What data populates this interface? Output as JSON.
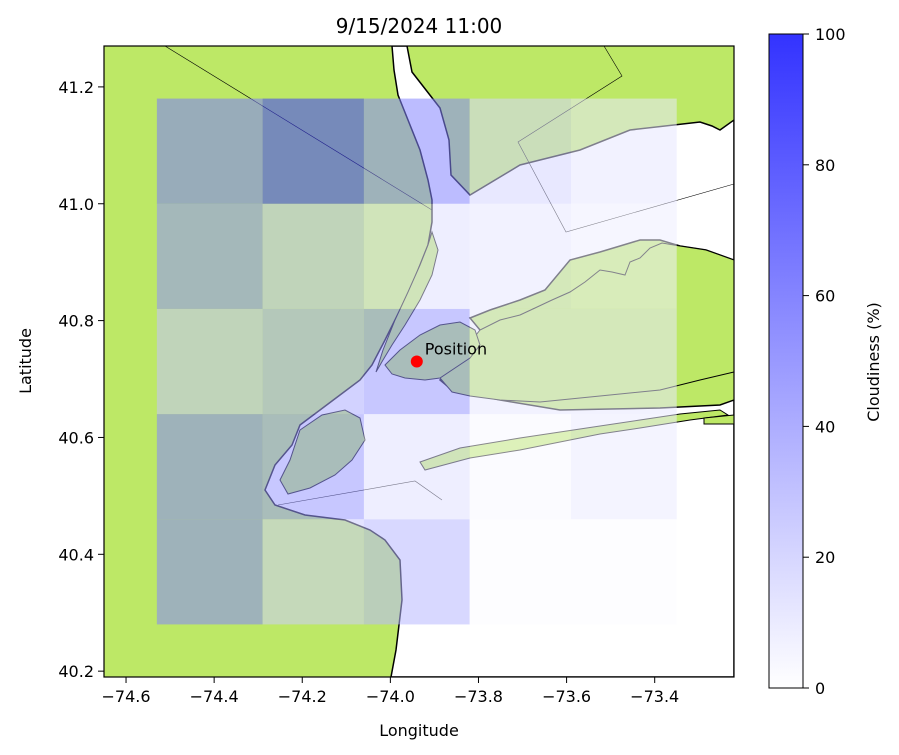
{
  "title": "9/15/2024 11:00",
  "x_axis": {
    "label": "Longitude",
    "range": [
      -74.65,
      -73.22
    ],
    "ticks": [
      -74.6,
      -74.4,
      -74.2,
      -74.0,
      -73.8,
      -73.6,
      -73.4
    ],
    "tick_labels": [
      "−74.6",
      "−74.4",
      "−74.2",
      "−74.0",
      "−73.8",
      "−73.6",
      "−73.4"
    ]
  },
  "y_axis": {
    "label": "Latitude",
    "range": [
      40.19,
      41.27
    ],
    "ticks": [
      40.2,
      40.4,
      40.6,
      40.8,
      41.0,
      41.2
    ],
    "tick_labels": [
      "40.2",
      "40.4",
      "40.6",
      "40.8",
      "41.0",
      "41.2"
    ]
  },
  "colorbar": {
    "label": "Cloudiness (%)",
    "range": [
      0,
      100
    ],
    "ticks": [
      0,
      20,
      40,
      60,
      80,
      100
    ],
    "tick_labels": [
      "0",
      "20",
      "40",
      "60",
      "80",
      "100"
    ],
    "color_min": "#ffffff",
    "color_max": "#3333ff"
  },
  "colors": {
    "land": "#bde866",
    "water": "#ffffff",
    "coast": "#000000",
    "marker": "#ff0000"
  },
  "chart_data": {
    "type": "heatmap",
    "title": "9/15/2024 11:00",
    "xlabel": "Longitude",
    "ylabel": "Latitude",
    "xlim": [
      -74.65,
      -73.22
    ],
    "ylim": [
      40.19,
      41.27
    ],
    "grid": false,
    "value_label": "Cloudiness (%)",
    "lon_edges": [
      -74.53,
      -74.29,
      -74.06,
      -73.82,
      -73.59,
      -73.35
    ],
    "lat_edges": [
      40.28,
      40.46,
      40.64,
      40.82,
      41.0,
      41.18
    ],
    "cells": [
      [
        60,
        25,
        35,
        2,
        2
      ],
      [
        60,
        50,
        15,
        4,
        10
      ],
      [
        30,
        40,
        50,
        12,
        12
      ],
      [
        55,
        30,
        15,
        12,
        8
      ],
      [
        65,
        95,
        60,
        20,
        12
      ]
    ],
    "marker": {
      "lon": -73.94,
      "lat": 40.73,
      "label": "Position"
    }
  }
}
